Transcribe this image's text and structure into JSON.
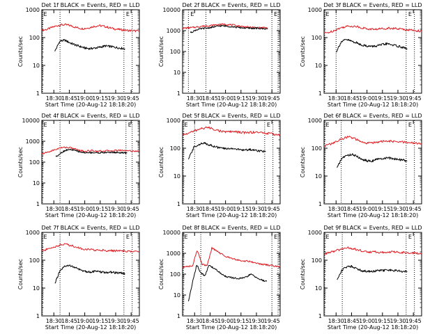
{
  "colors": {
    "events": "#000000",
    "lld": "#e0191f",
    "axes": "#000000",
    "markers": "#000000"
  },
  "chart_data": [
    {
      "type": "line",
      "title": "Det 1f BLACK = Events, RED = LLD",
      "xlabel": "Start Time (20-Aug-12 18:18:20)",
      "ylabel": "Counts/sec",
      "xlim": [
        "18:18:20",
        "19:53:00"
      ],
      "ylim": [
        1,
        1000
      ],
      "yscale": "log",
      "xticks": [
        "18:30",
        "18:45",
        "19:00",
        "19:15",
        "19:30",
        "19:45"
      ],
      "yticks": [
        "1",
        "10",
        "100",
        "1000"
      ],
      "markers": [
        "18:18",
        "18:36",
        "19:38",
        "19:46"
      ],
      "corner_labels": [
        "E",
        "E"
      ],
      "series": [
        {
          "color": "red",
          "start": "18:18:20",
          "end": "19:53:00",
          "values": [
            180,
            200,
            240,
            280,
            290,
            270,
            230,
            210,
            220,
            250,
            270,
            250,
            220,
            200,
            190,
            180,
            175,
            170
          ]
        },
        {
          "color": "black",
          "start": "18:31:00",
          "end": "19:39:00",
          "values": [
            32,
            75,
            80,
            65,
            55,
            48,
            42,
            40,
            42,
            45,
            50,
            48,
            45,
            42,
            40
          ]
        }
      ]
    },
    {
      "type": "line",
      "title": "Det 2f BLACK = Events, RED = LLD",
      "xlabel": "Start Time (20-Aug-12 18:18:20)",
      "ylabel": "Counts/sec",
      "xlim": [
        "18:18:20",
        "19:53:00"
      ],
      "ylim": [
        1,
        10000
      ],
      "yscale": "log",
      "xticks": [
        "18:30",
        "18:45",
        "19:00",
        "19:15",
        "19:30",
        "19:45"
      ],
      "yticks": [
        "1",
        "10",
        "100",
        "1000",
        "10000"
      ],
      "markers": [
        "18:24",
        "18:41",
        "19:45",
        "19:51"
      ],
      "corner_labels": [
        "E",
        "E"
      ],
      "series": [
        {
          "color": "red",
          "start": "18:18:20",
          "end": "19:41:00",
          "values": [
            1300,
            1350,
            1450,
            1600,
            1700,
            1800,
            1950,
            2000,
            1900,
            1700,
            1550,
            1450,
            1400,
            1380,
            1360
          ]
        },
        {
          "color": "black",
          "start": "18:26:00",
          "end": "19:41:00",
          "values": [
            800,
            1100,
            1250,
            1350,
            1500,
            1700,
            1650,
            1550,
            1400,
            1350,
            1300,
            1280,
            1250,
            1230
          ]
        }
      ]
    },
    {
      "type": "line",
      "title": "Det 3f BLACK = Events, RED = LLD",
      "xlabel": "Start Time (20-Aug-12 18:18:20)",
      "ylabel": "Counts/sec",
      "xlim": [
        "18:18:20",
        "19:53:00"
      ],
      "ylim": [
        1,
        1000
      ],
      "yscale": "log",
      "xticks": [
        "18:30",
        "18:45",
        "19:00",
        "19:15",
        "19:30",
        "19:45"
      ],
      "yticks": [
        "1",
        "10",
        "100",
        "1000"
      ],
      "markers": [
        "18:18",
        "18:30",
        "19:38",
        "19:46"
      ],
      "corner_labels": [
        "E",
        "E"
      ],
      "series": [
        {
          "color": "red",
          "start": "18:18:20",
          "end": "19:53:00",
          "values": [
            140,
            160,
            200,
            240,
            260,
            250,
            220,
            200,
            200,
            210,
            220,
            210,
            200,
            190,
            180,
            170
          ]
        },
        {
          "color": "black",
          "start": "18:30:00",
          "end": "19:39:00",
          "values": [
            30,
            70,
            85,
            75,
            65,
            55,
            50,
            48,
            50,
            55,
            60,
            55,
            50,
            45,
            40
          ]
        }
      ]
    },
    {
      "type": "line",
      "title": "Det 4f BLACK = Events, RED = LLD",
      "xlabel": "Start Time (20-Aug-12 18:18:20)",
      "ylabel": "Counts/sec",
      "xlim": [
        "18:18:20",
        "19:53:00"
      ],
      "ylim": [
        1,
        10000
      ],
      "yscale": "log",
      "xticks": [
        "18:30",
        "18:45",
        "19:00",
        "19:15",
        "19:30",
        "19:45"
      ],
      "yticks": [
        "1",
        "10",
        "100",
        "1000",
        "10000"
      ],
      "markers": [
        "18:18",
        "18:36",
        "19:40",
        "19:46"
      ],
      "corner_labels": [
        "E",
        "E"
      ],
      "series": [
        {
          "color": "red",
          "start": "18:18:20",
          "end": "19:53:00",
          "values": [
            250,
            300,
            380,
            480,
            520,
            470,
            380,
            330,
            360,
            340,
            340,
            350,
            360,
            370,
            360,
            340,
            320
          ]
        },
        {
          "color": "black",
          "start": "18:32:00",
          "end": "19:41:00",
          "values": [
            180,
            280,
            380,
            400,
            350,
            300,
            280,
            290,
            280,
            285,
            290,
            295,
            290,
            280,
            270
          ]
        }
      ]
    },
    {
      "type": "line",
      "title": "Det 5f BLACK = Events, RED = LLD",
      "xlabel": "Start Time (20-Aug-12 18:18:20)",
      "ylabel": "Counts/sec",
      "xlim": [
        "18:18:20",
        "19:53:00"
      ],
      "ylim": [
        1,
        1000
      ],
      "yscale": "log",
      "xticks": [
        "18:30",
        "18:45",
        "19:00",
        "19:15",
        "19:30",
        "19:45"
      ],
      "yticks": [
        "1",
        "10",
        "100",
        "1000"
      ],
      "markers": [
        "18:18",
        "18:30",
        "19:38",
        "19:46"
      ],
      "corner_labels": [
        "E",
        "E"
      ],
      "series": [
        {
          "color": "red",
          "start": "18:18:20",
          "end": "19:53:00",
          "values": [
            300,
            350,
            420,
            500,
            560,
            500,
            420,
            380,
            400,
            380,
            360,
            370,
            380,
            360,
            340,
            320,
            300
          ]
        },
        {
          "color": "black",
          "start": "18:24:00",
          "end": "19:39:00",
          "values": [
            40,
            110,
            140,
            150,
            130,
            110,
            100,
            95,
            100,
            90,
            85,
            90,
            85,
            80,
            75
          ]
        }
      ]
    },
    {
      "type": "line",
      "title": "Det 6f BLACK = Events, RED = LLD",
      "xlabel": "Start Time (20-Aug-12 18:18:20)",
      "ylabel": "Counts/sec",
      "xlim": [
        "18:18:20",
        "19:53:00"
      ],
      "ylim": [
        1,
        1000
      ],
      "yscale": "log",
      "xticks": [
        "18:30",
        "18:45",
        "19:00",
        "19:15",
        "19:30",
        "19:45"
      ],
      "yticks": [
        "1",
        "10",
        "100",
        "1000"
      ],
      "markers": [
        "18:18",
        "18:35",
        "19:38",
        "19:46"
      ],
      "corner_labels": [
        "E",
        "E"
      ],
      "series": [
        {
          "color": "red",
          "start": "18:18:20",
          "end": "19:53:00",
          "values": [
            120,
            140,
            170,
            220,
            260,
            220,
            170,
            150,
            160,
            170,
            180,
            175,
            170,
            165,
            160,
            150,
            140
          ]
        },
        {
          "color": "black",
          "start": "18:31:00",
          "end": "19:39:00",
          "values": [
            20,
            45,
            55,
            60,
            50,
            40,
            35,
            35,
            40,
            42,
            45,
            42,
            40,
            38,
            35
          ]
        }
      ]
    },
    {
      "type": "line",
      "title": "Det 7f BLACK = Events, RED = LLD",
      "xlabel": "Start Time (20-Aug-12 18:18:20)",
      "ylabel": "Counts/sec",
      "xlim": [
        "18:18:20",
        "19:53:00"
      ],
      "ylim": [
        1,
        1000
      ],
      "yscale": "log",
      "xticks": [
        "18:30",
        "18:45",
        "19:00",
        "19:15",
        "19:30",
        "19:45"
      ],
      "yticks": [
        "1",
        "10",
        "100",
        "1000"
      ],
      "markers": [
        "18:18",
        "18:36",
        "19:38",
        "19:46"
      ],
      "corner_labels": [
        "E",
        "E"
      ],
      "series": [
        {
          "color": "red",
          "start": "18:18:20",
          "end": "19:53:00",
          "values": [
            220,
            250,
            300,
            350,
            380,
            330,
            280,
            250,
            240,
            230,
            230,
            220,
            220,
            215,
            210,
            205,
            200
          ]
        },
        {
          "color": "black",
          "start": "18:31:00",
          "end": "19:39:00",
          "values": [
            15,
            40,
            60,
            65,
            55,
            45,
            40,
            38,
            40,
            38,
            36,
            37,
            36,
            35,
            33
          ]
        }
      ]
    },
    {
      "type": "line",
      "title": "Det 8f BLACK = Events, RED = LLD",
      "xlabel": "Start Time (20-Aug-12 18:18:20)",
      "ylabel": "Counts/sec",
      "xlim": [
        "18:18:20",
        "19:53:00"
      ],
      "ylim": [
        1,
        10000
      ],
      "yscale": "log",
      "xticks": [
        "18:30",
        "18:45",
        "19:00",
        "19:15",
        "19:30",
        "19:45"
      ],
      "yticks": [
        "1",
        "10",
        "100",
        "1000",
        "10000"
      ],
      "markers": [
        "18:18",
        "18:36",
        "19:45",
        "19:51"
      ],
      "corner_labels": [
        "E",
        "E"
      ],
      "series": [
        {
          "color": "red",
          "start": "18:18:20",
          "end": "19:53:00",
          "values": [
            220,
            230,
            240,
            1400,
            300,
            250,
            1800,
            1300,
            900,
            700,
            600,
            500,
            450,
            420,
            400,
            350,
            300,
            280,
            260,
            240,
            220
          ]
        },
        {
          "color": "black",
          "start": "18:24:00",
          "end": "19:40:00",
          "values": [
            5,
            40,
            280,
            120,
            80,
            280,
            200,
            150,
            100,
            80,
            70,
            65,
            60,
            65,
            70,
            100,
            80,
            60,
            50,
            45
          ]
        }
      ]
    },
    {
      "type": "line",
      "title": "Det 9f BLACK = Events, RED = LLD",
      "xlabel": "Start Time (20-Aug-12 18:18:20)",
      "ylabel": "Counts/sec",
      "xlim": [
        "18:18:20",
        "19:53:00"
      ],
      "ylim": [
        1,
        1000
      ],
      "yscale": "log",
      "xticks": [
        "18:30",
        "18:45",
        "19:00",
        "19:15",
        "19:30",
        "19:45"
      ],
      "yticks": [
        "1",
        "10",
        "100",
        "1000"
      ],
      "markers": [
        "18:18",
        "18:36",
        "19:38",
        "19:46"
      ],
      "corner_labels": [
        "E",
        "E"
      ],
      "series": [
        {
          "color": "red",
          "start": "18:18:20",
          "end": "19:53:00",
          "values": [
            170,
            190,
            220,
            260,
            280,
            250,
            220,
            200,
            200,
            195,
            190,
            200,
            195,
            190,
            185,
            180,
            175
          ]
        },
        {
          "color": "black",
          "start": "18:31:00",
          "end": "19:39:00",
          "values": [
            20,
            45,
            60,
            60,
            50,
            42,
            40,
            40,
            42,
            43,
            44,
            43,
            42,
            40,
            38
          ]
        }
      ]
    }
  ]
}
